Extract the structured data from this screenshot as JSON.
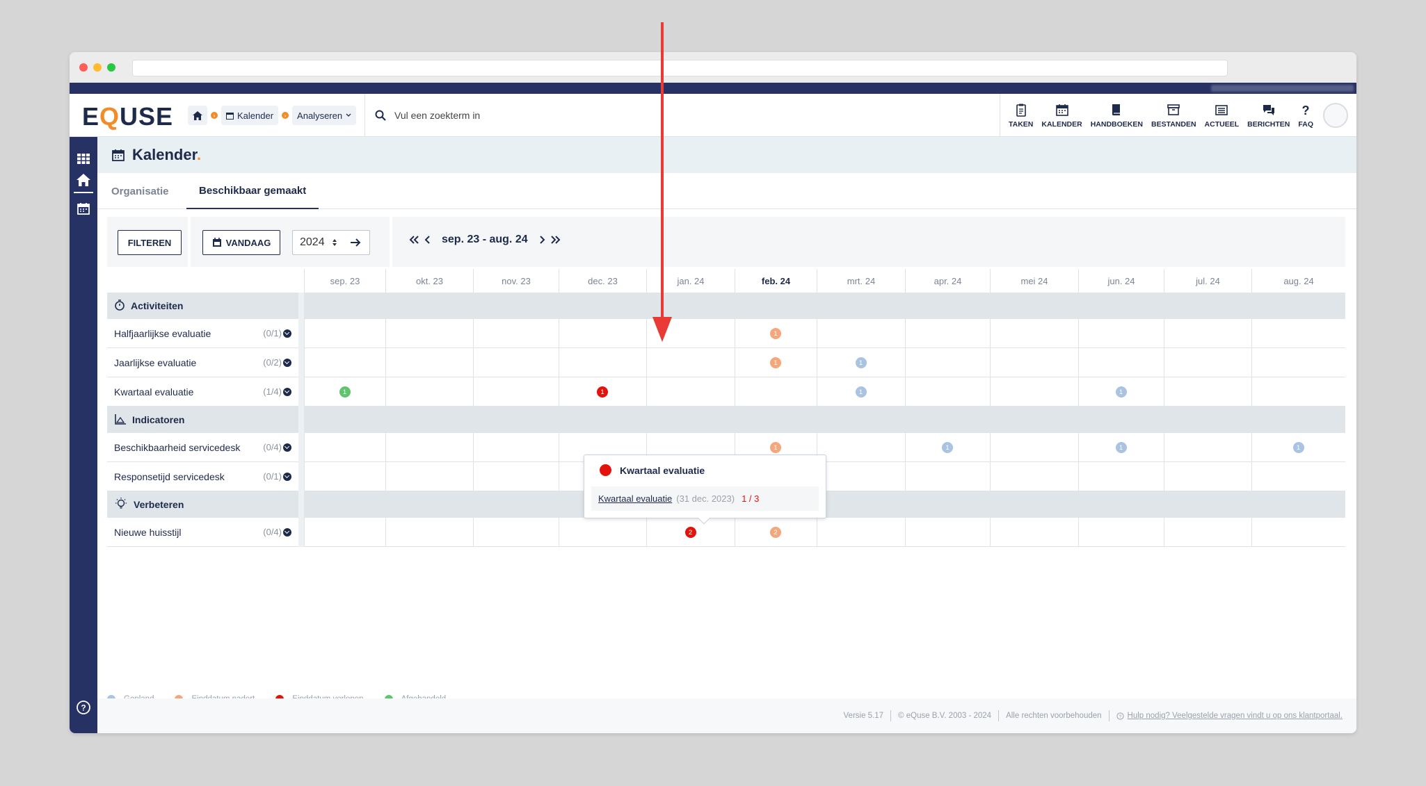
{
  "app": {
    "logo_prefix": "E",
    "logo_q": "Q",
    "logo_suffix": "USE"
  },
  "breadcrumb": {
    "calendar": "Kalender",
    "analyse": "Analyseren"
  },
  "search": {
    "placeholder": "Vul een zoekterm in"
  },
  "topnav": [
    {
      "label": "TAKEN",
      "icon": "clipboard-icon"
    },
    {
      "label": "KALENDER",
      "icon": "calendar-icon"
    },
    {
      "label": "HANDBOEKEN",
      "icon": "book-icon"
    },
    {
      "label": "BESTANDEN",
      "icon": "archive-icon"
    },
    {
      "label": "ACTUEEL",
      "icon": "newspaper-icon"
    },
    {
      "label": "BERICHTEN",
      "icon": "chat-icon"
    },
    {
      "label": "FAQ",
      "icon": "question-icon"
    }
  ],
  "page": {
    "title": "Kalender",
    "title_dot": ".",
    "tabs": [
      "Organisatie",
      "Beschikbaar gemaakt"
    ]
  },
  "toolbar": {
    "filter": "FILTEREN",
    "today": "VANDAAG",
    "year": "2024",
    "range": "sep. 23 - aug. 24"
  },
  "months": [
    "sep. 23",
    "okt. 23",
    "nov. 23",
    "dec. 23",
    "jan. 24",
    "feb. 24",
    "mrt. 24",
    "apr. 24",
    "mei 24",
    "jun. 24",
    "jul. 24",
    "aug. 24"
  ],
  "sections": [
    {
      "title": "Activiteiten",
      "icon": "stopwatch-icon",
      "items": [
        {
          "label": "Halfjaarlijkse evaluatie",
          "count": "(0/1)",
          "badges": [
            {
              "month": 5,
              "n": "1",
              "status": "orange"
            }
          ]
        },
        {
          "label": "Jaarlijkse evaluatie",
          "count": "(0/2)",
          "badges": [
            {
              "month": 5,
              "n": "1",
              "status": "orange"
            },
            {
              "month": 6,
              "n": "1",
              "status": "blue"
            }
          ]
        },
        {
          "label": "Kwartaal evaluatie",
          "count": "(1/4)",
          "badges": [
            {
              "month": 0,
              "n": "1",
              "status": "green"
            },
            {
              "month": 3,
              "n": "1",
              "status": "red"
            },
            {
              "month": 6,
              "n": "1",
              "status": "blue"
            },
            {
              "month": 9,
              "n": "1",
              "status": "blue"
            }
          ]
        }
      ]
    },
    {
      "title": "Indicatoren",
      "icon": "chart-icon",
      "items": [
        {
          "label": "Beschikbaarheid servicedesk",
          "count": "(0/4)",
          "badges": [
            {
              "month": 5,
              "n": "1",
              "status": "orange"
            },
            {
              "month": 7,
              "n": "1",
              "status": "blue"
            },
            {
              "month": 9,
              "n": "1",
              "status": "blue"
            },
            {
              "month": 11,
              "n": "1",
              "status": "blue"
            }
          ]
        },
        {
          "label": "Responsetijd servicedesk",
          "count": "(0/1)",
          "badges": [
            {
              "month": 5,
              "n": "1",
              "status": "orange"
            }
          ]
        }
      ]
    },
    {
      "title": "Verbeteren",
      "icon": "lightbulb-icon",
      "items": [
        {
          "label": "Nieuwe huisstijl",
          "count": "(0/4)",
          "badges": [
            {
              "month": 4,
              "n": "2",
              "status": "red"
            },
            {
              "month": 5,
              "n": "2",
              "status": "orange"
            }
          ]
        }
      ]
    }
  ],
  "popup": {
    "title": "Kwartaal evaluatie",
    "link": "Kwartaal evaluatie",
    "date": "(31 dec. 2023)",
    "count": "1 / 3"
  },
  "legend": [
    {
      "label": "Gepland",
      "status": "blue"
    },
    {
      "label": "Einddatum nadert",
      "status": "orange"
    },
    {
      "label": "Einddatum verlopen",
      "status": "red"
    },
    {
      "label": "Afgehandeld",
      "status": "green"
    }
  ],
  "colors": {
    "blue": "#a9c3e0",
    "orange": "#f3a77b",
    "red": "#e3120b",
    "green": "#5fc46d",
    "brand_navy": "#263164",
    "brand_orange": "#f28c28"
  },
  "footer": {
    "version": "Versie 5.17",
    "copyright": "© eQuse B.V. 2003 - 2024",
    "rights": "Alle rechten voorbehouden",
    "help": "Hulp nodig? Veelgestelde vragen vindt u op ons klantportaal."
  }
}
